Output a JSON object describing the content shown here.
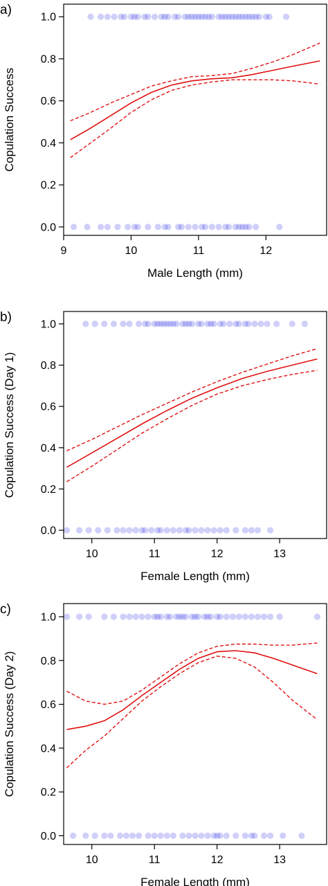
{
  "chart_data": [
    {
      "panel_label": "a)",
      "type": "scatter",
      "xlabel": "Male Length (mm)",
      "ylabel": "Copulation Success",
      "xlim": [
        9.0,
        12.9
      ],
      "ylim": [
        -0.04,
        1.06
      ],
      "xticks": [
        "9",
        "10",
        "11",
        "12"
      ],
      "yticks": [
        "0.0",
        "0.2",
        "0.4",
        "0.6",
        "0.8",
        "1.0"
      ],
      "point_color": "#1010e0",
      "curve_color": "#e01010",
      "points_y1": [
        9.4,
        9.55,
        9.65,
        9.75,
        9.85,
        9.9,
        10.0,
        10.05,
        10.1,
        10.2,
        10.25,
        10.35,
        10.45,
        10.5,
        10.55,
        10.65,
        10.7,
        10.8,
        10.85,
        10.9,
        10.95,
        11.0,
        11.05,
        11.1,
        11.15,
        11.2,
        11.3,
        11.35,
        11.4,
        11.45,
        11.5,
        11.55,
        11.6,
        11.65,
        11.7,
        11.75,
        11.8,
        11.85,
        11.9,
        12.0,
        12.05,
        12.3
      ],
      "points_y0": [
        9.15,
        9.35,
        9.55,
        9.65,
        9.8,
        9.95,
        10.05,
        10.1,
        10.25,
        10.4,
        10.5,
        10.55,
        10.7,
        10.75,
        10.85,
        10.95,
        11.05,
        11.1,
        11.2,
        11.3,
        11.4,
        11.45,
        11.55,
        11.6,
        11.65,
        11.7,
        11.75,
        11.85,
        12.2
      ],
      "fit": {
        "x": [
          9.1,
          9.4,
          9.7,
          10.0,
          10.3,
          10.6,
          10.9,
          11.2,
          11.5,
          11.8,
          12.1,
          12.4,
          12.8
        ],
        "y": [
          0.415,
          0.47,
          0.53,
          0.59,
          0.64,
          0.675,
          0.695,
          0.705,
          0.71,
          0.725,
          0.745,
          0.765,
          0.79
        ]
      },
      "ci_upper": {
        "x": [
          9.1,
          9.4,
          9.7,
          10.0,
          10.3,
          10.6,
          10.9,
          11.2,
          11.5,
          11.8,
          12.1,
          12.4,
          12.8
        ],
        "y": [
          0.505,
          0.545,
          0.59,
          0.63,
          0.67,
          0.695,
          0.715,
          0.72,
          0.73,
          0.755,
          0.785,
          0.82,
          0.875
        ]
      },
      "ci_lower": {
        "x": [
          9.1,
          9.4,
          9.7,
          10.0,
          10.3,
          10.6,
          10.9,
          11.2,
          11.5,
          11.8,
          12.1,
          12.4,
          12.8
        ],
        "y": [
          0.33,
          0.4,
          0.47,
          0.545,
          0.605,
          0.65,
          0.675,
          0.69,
          0.7,
          0.7,
          0.7,
          0.695,
          0.68
        ]
      }
    },
    {
      "panel_label": "b)",
      "type": "scatter",
      "xlabel": "Female Length (mm)",
      "ylabel": "Copulation Success (Day 1)",
      "xlim": [
        9.55,
        13.75
      ],
      "ylim": [
        -0.04,
        1.06
      ],
      "xticks": [
        "10",
        "11",
        "12",
        "13"
      ],
      "yticks": [
        "0.0",
        "0.2",
        "0.4",
        "0.6",
        "0.8",
        "1.0"
      ],
      "point_color": "#1010e0",
      "curve_color": "#e01010",
      "points_y1": [
        9.9,
        10.05,
        10.2,
        10.35,
        10.5,
        10.6,
        10.75,
        10.85,
        10.9,
        11.0,
        11.05,
        11.1,
        11.15,
        11.2,
        11.25,
        11.3,
        11.35,
        11.45,
        11.5,
        11.55,
        11.6,
        11.7,
        11.75,
        11.85,
        11.9,
        11.95,
        12.05,
        12.1,
        12.2,
        12.3,
        12.35,
        12.45,
        12.5,
        12.6,
        12.7,
        12.8,
        12.95,
        13.2,
        13.4
      ],
      "points_y0": [
        9.6,
        9.8,
        9.95,
        10.1,
        10.25,
        10.4,
        10.5,
        10.6,
        10.7,
        10.8,
        10.85,
        10.95,
        11.05,
        11.1,
        11.2,
        11.3,
        11.4,
        11.5,
        11.55,
        11.65,
        11.75,
        11.85,
        11.95,
        12.05,
        12.15,
        12.3,
        12.45,
        12.55,
        12.65,
        12.85
      ],
      "fit": {
        "x": [
          9.6,
          10.0,
          10.4,
          10.8,
          11.2,
          11.6,
          12.0,
          12.4,
          12.8,
          13.2,
          13.6
        ],
        "y": [
          0.305,
          0.375,
          0.445,
          0.515,
          0.58,
          0.64,
          0.69,
          0.735,
          0.77,
          0.8,
          0.83
        ]
      },
      "ci_upper": {
        "x": [
          9.6,
          10.0,
          10.4,
          10.8,
          11.2,
          11.6,
          12.0,
          12.4,
          12.8,
          13.2,
          13.6
        ],
        "y": [
          0.385,
          0.44,
          0.5,
          0.56,
          0.615,
          0.67,
          0.72,
          0.765,
          0.805,
          0.845,
          0.88
        ]
      },
      "ci_lower": {
        "x": [
          9.6,
          10.0,
          10.4,
          10.8,
          11.2,
          11.6,
          12.0,
          12.4,
          12.8,
          13.2,
          13.6
        ],
        "y": [
          0.235,
          0.31,
          0.39,
          0.47,
          0.54,
          0.605,
          0.66,
          0.7,
          0.73,
          0.755,
          0.775
        ]
      }
    },
    {
      "panel_label": "c)",
      "type": "scatter",
      "xlabel": "Female Length (mm)",
      "ylabel": "Copulation Success (Day 2)",
      "xlim": [
        9.55,
        13.75
      ],
      "ylim": [
        -0.04,
        1.06
      ],
      "xticks": [
        "10",
        "11",
        "12",
        "13"
      ],
      "yticks": [
        "0.0",
        "0.2",
        "0.4",
        "0.6",
        "0.8",
        "1.0"
      ],
      "point_color": "#1010e0",
      "curve_color": "#e01010",
      "points_y1": [
        9.6,
        9.8,
        9.95,
        10.2,
        10.35,
        10.5,
        10.6,
        10.7,
        10.8,
        10.9,
        11.0,
        11.05,
        11.1,
        11.2,
        11.25,
        11.35,
        11.4,
        11.45,
        11.5,
        11.6,
        11.65,
        11.7,
        11.8,
        11.85,
        11.9,
        12.0,
        12.05,
        12.15,
        12.25,
        12.35,
        12.45,
        12.55,
        12.65,
        12.75,
        12.85,
        13.0,
        13.6
      ],
      "points_y0": [
        9.7,
        9.9,
        10.05,
        10.2,
        10.3,
        10.45,
        10.55,
        10.65,
        10.75,
        10.9,
        11.0,
        11.1,
        11.2,
        11.3,
        11.45,
        11.55,
        11.65,
        11.75,
        11.85,
        11.95,
        12.0,
        12.05,
        12.15,
        12.3,
        12.45,
        12.55,
        12.6,
        12.75,
        12.85,
        13.05,
        13.35
      ],
      "fit": {
        "x": [
          9.6,
          9.9,
          10.2,
          10.5,
          10.8,
          11.1,
          11.4,
          11.7,
          12.0,
          12.3,
          12.6,
          12.9,
          13.2,
          13.6
        ],
        "y": [
          0.485,
          0.5,
          0.525,
          0.575,
          0.64,
          0.7,
          0.76,
          0.81,
          0.84,
          0.845,
          0.835,
          0.81,
          0.78,
          0.74
        ]
      },
      "ci_upper": {
        "x": [
          9.6,
          9.9,
          10.2,
          10.5,
          10.8,
          11.1,
          11.4,
          11.7,
          12.0,
          12.3,
          12.6,
          12.9,
          13.2,
          13.6
        ],
        "y": [
          0.66,
          0.615,
          0.6,
          0.615,
          0.665,
          0.725,
          0.785,
          0.835,
          0.865,
          0.875,
          0.875,
          0.87,
          0.87,
          0.88
        ]
      },
      "ci_lower": {
        "x": [
          9.6,
          9.9,
          10.2,
          10.5,
          10.8,
          11.1,
          11.4,
          11.7,
          12.0,
          12.3,
          12.6,
          12.9,
          13.2,
          13.6
        ],
        "y": [
          0.31,
          0.39,
          0.455,
          0.535,
          0.615,
          0.68,
          0.74,
          0.79,
          0.82,
          0.81,
          0.77,
          0.7,
          0.62,
          0.53
        ]
      }
    }
  ]
}
